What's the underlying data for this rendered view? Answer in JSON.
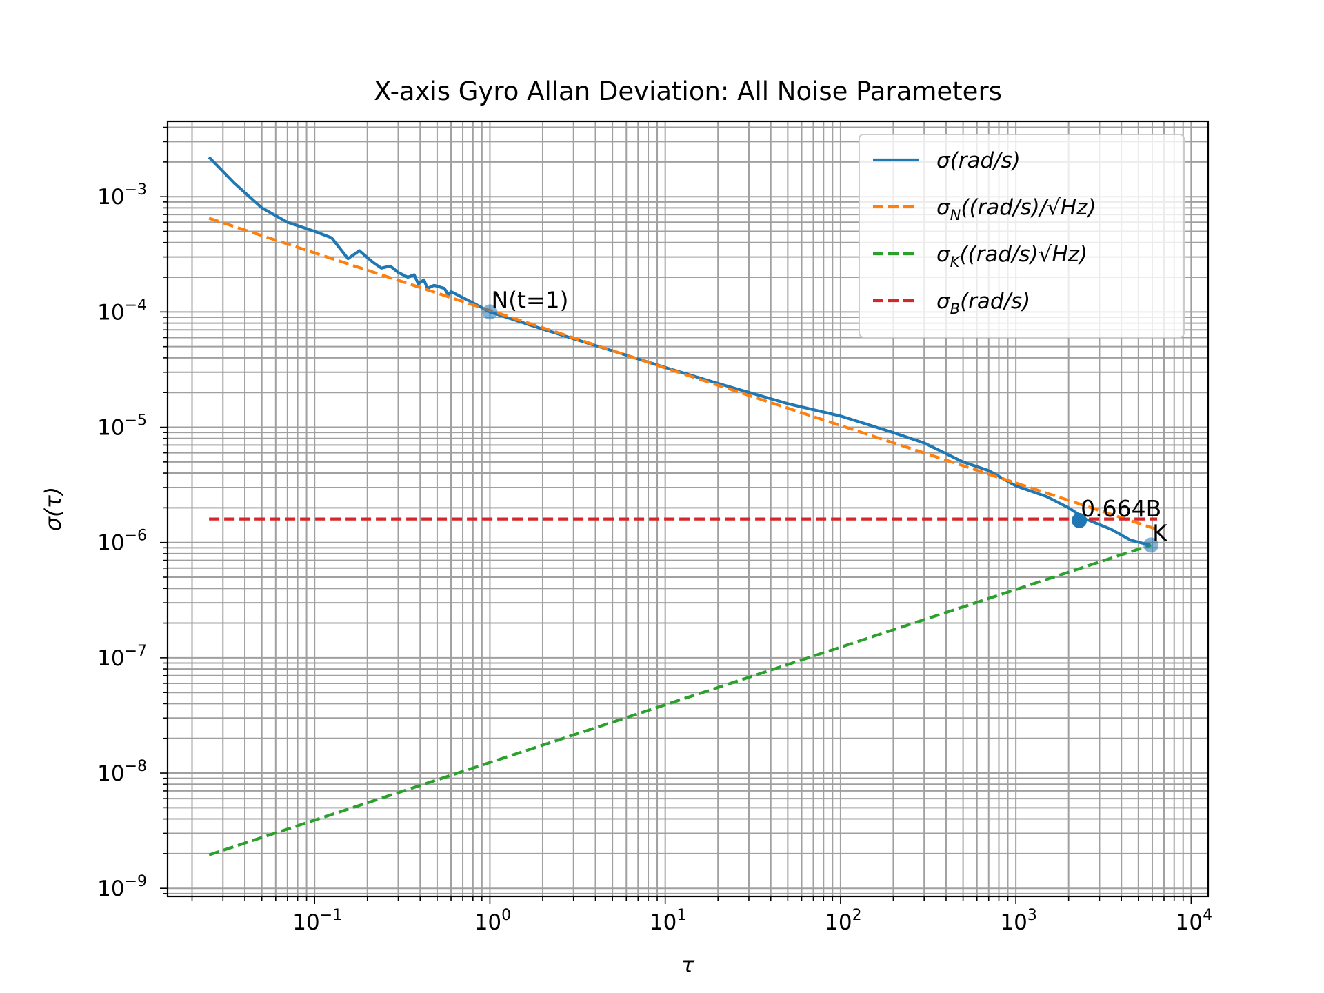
{
  "chart_data": {
    "type": "line",
    "title": "X-axis Gyro Allan Deviation: All Noise Parameters",
    "xlabel": "τ",
    "ylabel": "σ(τ)",
    "xscale": "log",
    "yscale": "log",
    "xlim": [
      0.0145,
      12500
    ],
    "ylim": [
      8.5e-10,
      0.0045
    ],
    "grid": "major+minor",
    "legend_position": "top-right",
    "x_ticks": [
      {
        "base": "10",
        "exp": "−1",
        "value": 0.1
      },
      {
        "base": "10",
        "exp": "0",
        "value": 1
      },
      {
        "base": "10",
        "exp": "1",
        "value": 10
      },
      {
        "base": "10",
        "exp": "2",
        "value": 100
      },
      {
        "base": "10",
        "exp": "3",
        "value": 1000
      },
      {
        "base": "10",
        "exp": "4",
        "value": 10000
      }
    ],
    "y_ticks": [
      {
        "base": "10",
        "exp": "−9",
        "value": 1e-09
      },
      {
        "base": "10",
        "exp": "−8",
        "value": 1e-08
      },
      {
        "base": "10",
        "exp": "−7",
        "value": 1e-07
      },
      {
        "base": "10",
        "exp": "−6",
        "value": 1e-06
      },
      {
        "base": "10",
        "exp": "−5",
        "value": 1e-05
      },
      {
        "base": "10",
        "exp": "−4",
        "value": 0.0001
      },
      {
        "base": "10",
        "exp": "−3",
        "value": 0.001
      }
    ],
    "series": [
      {
        "name": "σ(rad/s)",
        "legend_main": "σ(rad/s)",
        "legend_sub": "",
        "legend_tail": "",
        "color": "#1f77b4",
        "style": "solid",
        "points": [
          [
            0.025,
            0.0022
          ],
          [
            0.035,
            0.0013
          ],
          [
            0.05,
            0.0008
          ],
          [
            0.07,
            0.0006
          ],
          [
            0.1,
            0.0005
          ],
          [
            0.125,
            0.00044
          ],
          [
            0.155,
            0.00029
          ],
          [
            0.18,
            0.00034
          ],
          [
            0.215,
            0.00027
          ],
          [
            0.24,
            0.00024
          ],
          [
            0.27,
            0.00025
          ],
          [
            0.3,
            0.00022
          ],
          [
            0.34,
            0.0002
          ],
          [
            0.37,
            0.00021
          ],
          [
            0.39,
            0.000175
          ],
          [
            0.42,
            0.00019
          ],
          [
            0.44,
            0.00016
          ],
          [
            0.48,
            0.00017
          ],
          [
            0.55,
            0.00016
          ],
          [
            0.58,
            0.00014
          ],
          [
            0.6,
            0.00015
          ],
          [
            0.8,
            0.00012
          ],
          [
            1.0,
            0.0001
          ],
          [
            2,
            7.1e-05
          ],
          [
            5,
            4.6e-05
          ],
          [
            10,
            3.3e-05
          ],
          [
            20,
            2.4e-05
          ],
          [
            50,
            1.6e-05
          ],
          [
            100,
            1.25e-05
          ],
          [
            200,
            9e-06
          ],
          [
            300,
            7.3e-06
          ],
          [
            500,
            5e-06
          ],
          [
            700,
            4.2e-06
          ],
          [
            1000,
            3.1e-06
          ],
          [
            1500,
            2.5e-06
          ],
          [
            2000,
            2e-06
          ],
          [
            2500,
            1.6e-06
          ],
          [
            3500,
            1.3e-06
          ],
          [
            4500,
            1.05e-06
          ],
          [
            5800,
            9.5e-07
          ]
        ]
      },
      {
        "name": "σN((rad/s)/√Hz)",
        "legend_main": "σ",
        "legend_sub": "N",
        "legend_tail": "((rad/s)/√Hz)",
        "color": "#ff7f0e",
        "style": "dashed",
        "points": [
          [
            0.025,
            0.00065
          ],
          [
            6400,
            1.3e-06
          ]
        ]
      },
      {
        "name": "σK((rad/s)√Hz)",
        "legend_main": "σ",
        "legend_sub": "K",
        "legend_tail": "((rad/s)√Hz)",
        "color": "#2ca02c",
        "style": "dashed",
        "points": [
          [
            0.025,
            1.95e-09
          ],
          [
            5900,
            9.5e-07
          ]
        ]
      },
      {
        "name": "σB(rad/s)",
        "legend_main": "σ",
        "legend_sub": "B",
        "legend_tail": "(rad/s)",
        "color": "#d62728",
        "style": "dashed",
        "points": [
          [
            0.025,
            1.6e-06
          ],
          [
            6400,
            1.6e-06
          ]
        ]
      }
    ],
    "annotations": [
      {
        "label": "N(t=1)",
        "x": 1.0,
        "y": 0.0001,
        "color": "#1f77b4",
        "alpha": 0.55
      },
      {
        "label": "0.664B",
        "x": 2300,
        "y": 1.55e-06,
        "color": "#1f77b4",
        "alpha": 1.0
      },
      {
        "label": "K",
        "x": 5900,
        "y": 9.5e-07,
        "color": "#1f77b4",
        "alpha": 0.55
      }
    ]
  }
}
